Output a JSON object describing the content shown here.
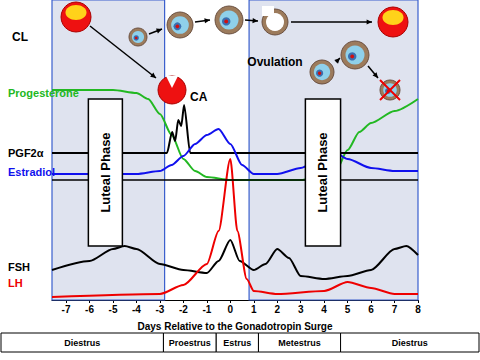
{
  "chart_data": {
    "type": "line",
    "x_label": "Days Relative to the Gonadotropin Surge",
    "xlim": [
      -7.6,
      8
    ],
    "xticks": [
      -7,
      -6,
      -5,
      -4,
      -3,
      -2,
      -1,
      0,
      1,
      2,
      3,
      4,
      5,
      6,
      7,
      8
    ],
    "ylim": [
      0,
      100
    ],
    "tick_labels": "x",
    "grid": false,
    "series": [
      {
        "name": "Progesterone",
        "color": "#22b822",
        "x": [
          -7.6,
          -6,
          -5,
          -4,
          -3.5,
          -3,
          -2.5,
          -2,
          -1.5,
          -1,
          0,
          1,
          2,
          3,
          4,
          4.5,
          5,
          5.5,
          6,
          7,
          8
        ],
        "values": [
          70,
          70,
          70,
          69,
          67,
          62,
          55,
          47,
          43,
          41,
          40,
          40,
          40,
          40,
          41,
          43,
          50,
          56,
          59,
          63,
          67
        ]
      },
      {
        "name": "PGF2α",
        "color": "#000000",
        "x": [
          -7.6,
          -2.7,
          -2.48,
          -2.35,
          -2.22,
          -2.09,
          -1.97,
          -1.71,
          8
        ],
        "values": [
          49,
          49,
          56,
          53,
          60,
          58,
          65,
          49,
          49
        ]
      },
      {
        "name": "Estradiol",
        "color": "#1010ee",
        "x": [
          -7.6,
          -6,
          -4,
          -3,
          -2.5,
          -2,
          -1.5,
          -1,
          -0.5,
          0,
          0.5,
          1,
          2,
          3,
          4,
          4.5,
          5,
          6,
          7,
          8
        ],
        "values": [
          42,
          42,
          42,
          43,
          45,
          48,
          52,
          55,
          57,
          52,
          45,
          42,
          42,
          44,
          48,
          49,
          47,
          44,
          43,
          43
        ]
      },
      {
        "name": "FSH",
        "color": "#000000",
        "x": [
          -7.6,
          -6,
          -5,
          -4.5,
          -4,
          -3,
          -2,
          -1,
          -0.5,
          0,
          0.4,
          1,
          1.5,
          2,
          2.5,
          3,
          4,
          5,
          6,
          7,
          7.5,
          8
        ],
        "values": [
          10,
          13,
          17,
          18,
          17,
          12,
          10,
          9,
          13,
          20,
          13,
          10,
          12,
          17,
          14,
          8,
          7,
          8,
          10,
          17,
          18,
          15
        ]
      },
      {
        "name": "LH",
        "color": "#ee0000",
        "x": [
          -7.6,
          -3,
          -2,
          -1,
          -0.5,
          0,
          0.3,
          0.7,
          1,
          2,
          4,
          5,
          6,
          7,
          8
        ],
        "values": [
          1,
          2,
          5,
          12,
          23,
          47,
          23,
          7,
          3,
          2,
          3,
          6,
          4,
          2,
          2
        ]
      }
    ],
    "shaded": [
      [
        -7.6,
        -2.8
      ],
      [
        0.8,
        8
      ]
    ],
    "hlines": [
      40
    ],
    "boxes": [
      {
        "label": "Luteal Phase",
        "x": [
          -6.05,
          -4.6
        ],
        "y": [
          18,
          67
        ]
      },
      {
        "label": "Luteal Phase",
        "x": [
          3.2,
          4.7
        ],
        "y": [
          18,
          67
        ]
      }
    ],
    "annotations": [
      {
        "text": "CL"
      },
      {
        "text": "CA"
      },
      {
        "text": "Ovulation"
      }
    ],
    "phases": [
      {
        "label": "Diestrus",
        "from": -9.8,
        "to": -2.85
      },
      {
        "label": "Proestrus",
        "from": -2.85,
        "to": -0.6
      },
      {
        "label": "Estrus",
        "from": -0.6,
        "to": 1.2
      },
      {
        "label": "Metestrus",
        "from": 1.2,
        "to": 4.7
      },
      {
        "label": "Diestrus",
        "from": 4.7,
        "to": 10.7
      }
    ]
  }
}
